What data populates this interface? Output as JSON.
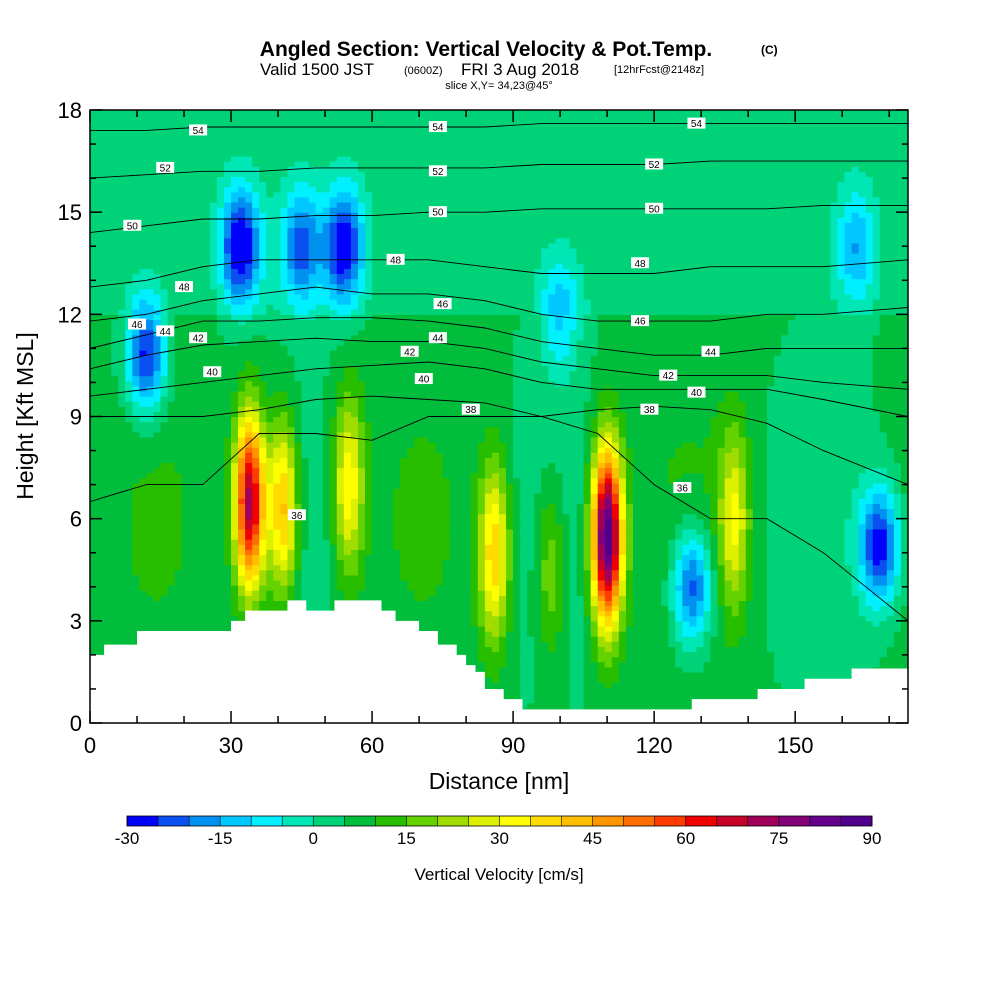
{
  "title": {
    "main": "Angled Section: Vertical Velocity & Pot.Temp.",
    "unit_tag": "(C)",
    "valid_prefix": "Valid 1500 JST",
    "utc_tag": "(0600Z)",
    "valid_suffix": "FRI 3 Aug 2018",
    "forecast_tag": "[12hrFcst@2148z]",
    "slice": "slice X,Y= 34,23@45°"
  },
  "chart_data": {
    "type": "heatmap",
    "title": "Angled Section: Vertical Velocity & Pot.Temp. (C)",
    "xlabel": "Distance [nm]",
    "ylabel": "Height [Kft MSL]",
    "xlim": [
      0,
      174
    ],
    "ylim": [
      0,
      18
    ],
    "xticks": [
      0,
      30,
      60,
      90,
      120,
      150
    ],
    "xtick_labels": [
      "0",
      "30",
      "60",
      "90",
      "120",
      "150"
    ],
    "yticks": [
      0,
      3,
      6,
      9,
      12,
      15,
      18
    ],
    "ytick_labels": [
      "0",
      "3",
      "6",
      "9",
      "12",
      "15",
      "18"
    ],
    "colorbar": {
      "label": "Vertical Velocity [cm/s]",
      "min": -30,
      "max": 90,
      "step": 5,
      "tick_values": [
        -30,
        -15,
        0,
        15,
        30,
        45,
        60,
        75,
        90
      ],
      "tick_labels": [
        "-30",
        "-15",
        "0",
        "15",
        "30",
        "45",
        "60",
        "75",
        "90"
      ],
      "colors": [
        "#0000ff",
        "#0a50f0",
        "#0090f0",
        "#00c8ff",
        "#00f0ff",
        "#00e6b4",
        "#00d278",
        "#00be3c",
        "#28be00",
        "#64d200",
        "#a0dc00",
        "#dcf000",
        "#ffff00",
        "#ffdc00",
        "#ffbe00",
        "#ff9600",
        "#ff6e00",
        "#ff3c00",
        "#f00000",
        "#c80028",
        "#a0005a",
        "#820078",
        "#64008c",
        "#50008c"
      ]
    },
    "vertical_velocity_features": [
      {
        "x": 34,
        "z": 6.5,
        "peak": 75
      },
      {
        "x": 41,
        "z": 6.3,
        "peak": 45
      },
      {
        "x": 55,
        "z": 7.0,
        "peak": 35
      },
      {
        "x": 86,
        "z": 5.0,
        "peak": 40
      },
      {
        "x": 98,
        "z": 4.5,
        "peak": 22
      },
      {
        "x": 110,
        "z": 5.5,
        "peak": 90
      },
      {
        "x": 137,
        "z": 6.0,
        "peak": 30
      },
      {
        "x": 128,
        "z": 4.0,
        "peak": -25
      },
      {
        "x": 168,
        "z": 5.2,
        "peak": -28
      },
      {
        "x": 12,
        "z": 10.8,
        "peak": -28
      },
      {
        "x": 32,
        "z": 14.0,
        "peak": -30
      },
      {
        "x": 54,
        "z": 14.0,
        "peak": -28
      },
      {
        "x": 45,
        "z": 14.0,
        "peak": -20
      },
      {
        "x": 100,
        "z": 12.0,
        "peak": -10
      },
      {
        "x": 163,
        "z": 14.0,
        "peak": -12
      }
    ],
    "terrain": [
      {
        "x": 0,
        "z": 2.0
      },
      {
        "x": 3,
        "z": 2.3
      },
      {
        "x": 10,
        "z": 2.7
      },
      {
        "x": 30,
        "z": 3.0
      },
      {
        "x": 33,
        "z": 3.3
      },
      {
        "x": 42,
        "z": 3.6
      },
      {
        "x": 46,
        "z": 3.3
      },
      {
        "x": 52,
        "z": 3.6
      },
      {
        "x": 59,
        "z": 3.6
      },
      {
        "x": 62,
        "z": 3.3
      },
      {
        "x": 65,
        "z": 3.0
      },
      {
        "x": 70,
        "z": 2.7
      },
      {
        "x": 74,
        "z": 2.3
      },
      {
        "x": 78,
        "z": 2.0
      },
      {
        "x": 80,
        "z": 1.7
      },
      {
        "x": 82,
        "z": 1.5
      },
      {
        "x": 84,
        "z": 1.0
      },
      {
        "x": 88,
        "z": 0.7
      },
      {
        "x": 92,
        "z": 0.4
      },
      {
        "x": 128,
        "z": 0.7
      },
      {
        "x": 142,
        "z": 1.0
      },
      {
        "x": 152,
        "z": 1.3
      },
      {
        "x": 162,
        "z": 1.6
      },
      {
        "x": 174,
        "z": 1.6
      }
    ],
    "isentropes": [
      {
        "theta": 36,
        "z": [
          6.5,
          7.0,
          7.0,
          8.5,
          8.5,
          8.3,
          9.0,
          9.0,
          9.0,
          8.5,
          7.0,
          6.0,
          6.0,
          5.0,
          3.0
        ],
        "labels": [
          {
            "x": 44,
            "z": 6.1
          },
          {
            "x": 126,
            "z": 6.9
          }
        ]
      },
      {
        "theta": 38,
        "z": [
          9.0,
          9.0,
          9.0,
          9.2,
          9.5,
          9.6,
          9.5,
          9.4,
          9.0,
          9.2,
          9.3,
          9.2,
          8.8,
          8.0,
          7.0
        ],
        "labels": [
          {
            "x": 81,
            "z": 9.2
          },
          {
            "x": 119,
            "z": 9.2
          }
        ]
      },
      {
        "theta": 40,
        "z": [
          9.6,
          9.8,
          10.0,
          10.2,
          10.4,
          10.5,
          10.6,
          10.4,
          10.0,
          9.8,
          9.8,
          9.8,
          9.8,
          9.5,
          9.0
        ],
        "labels": [
          {
            "x": 26,
            "z": 10.3
          },
          {
            "x": 71,
            "z": 10.1
          },
          {
            "x": 129,
            "z": 9.7
          }
        ]
      },
      {
        "theta": 42,
        "z": [
          10.4,
          10.8,
          11.1,
          11.2,
          11.3,
          11.2,
          11.2,
          11.0,
          10.6,
          10.4,
          10.2,
          10.2,
          10.2,
          10.0,
          9.8
        ],
        "labels": [
          {
            "x": 23,
            "z": 11.3
          },
          {
            "x": 68,
            "z": 10.9
          },
          {
            "x": 123,
            "z": 10.2
          }
        ]
      },
      {
        "theta": 44,
        "z": [
          11.0,
          11.4,
          11.8,
          11.8,
          11.9,
          11.9,
          11.8,
          11.6,
          11.2,
          11.0,
          10.8,
          10.8,
          11.0,
          11.0,
          11.0
        ],
        "labels": [
          {
            "x": 16,
            "z": 11.5
          },
          {
            "x": 74,
            "z": 11.3
          },
          {
            "x": 132,
            "z": 10.9
          }
        ]
      },
      {
        "theta": 46,
        "z": [
          11.8,
          12.0,
          12.4,
          12.6,
          12.8,
          12.6,
          12.6,
          12.4,
          12.0,
          11.8,
          11.8,
          11.8,
          12.0,
          12.0,
          12.2
        ],
        "labels": [
          {
            "x": 10,
            "z": 11.7
          },
          {
            "x": 75,
            "z": 12.3
          },
          {
            "x": 117,
            "z": 11.8
          }
        ]
      },
      {
        "theta": 48,
        "z": [
          12.8,
          13.0,
          13.4,
          13.6,
          13.6,
          13.6,
          13.6,
          13.4,
          13.2,
          13.2,
          13.2,
          13.4,
          13.4,
          13.4,
          13.6
        ],
        "labels": [
          {
            "x": 20,
            "z": 12.8
          },
          {
            "x": 65,
            "z": 13.6
          },
          {
            "x": 117,
            "z": 13.5
          }
        ]
      },
      {
        "theta": 50,
        "z": [
          14.4,
          14.6,
          14.8,
          14.8,
          14.9,
          14.9,
          15.0,
          15.0,
          15.1,
          15.1,
          15.1,
          15.1,
          15.1,
          15.2,
          15.2
        ],
        "labels": [
          {
            "x": 9,
            "z": 14.6
          },
          {
            "x": 74,
            "z": 15.0
          },
          {
            "x": 120,
            "z": 15.1
          }
        ]
      },
      {
        "theta": 52,
        "z": [
          16.0,
          16.1,
          16.2,
          16.2,
          16.3,
          16.3,
          16.3,
          16.3,
          16.4,
          16.4,
          16.4,
          16.5,
          16.5,
          16.5,
          16.5
        ],
        "labels": [
          {
            "x": 16,
            "z": 16.3
          },
          {
            "x": 74,
            "z": 16.2
          },
          {
            "x": 120,
            "z": 16.4
          }
        ]
      },
      {
        "theta": 54,
        "z": [
          17.4,
          17.4,
          17.5,
          17.5,
          17.5,
          17.5,
          17.5,
          17.5,
          17.6,
          17.6,
          17.6,
          17.6,
          17.6,
          17.6,
          17.6
        ],
        "labels": [
          {
            "x": 23,
            "z": 17.4
          },
          {
            "x": 74,
            "z": 17.5
          },
          {
            "x": 129,
            "z": 17.6
          }
        ]
      }
    ],
    "isentrope_x": [
      0,
      12,
      24,
      36,
      48,
      60,
      72,
      84,
      96,
      108,
      120,
      132,
      144,
      156,
      174
    ]
  }
}
